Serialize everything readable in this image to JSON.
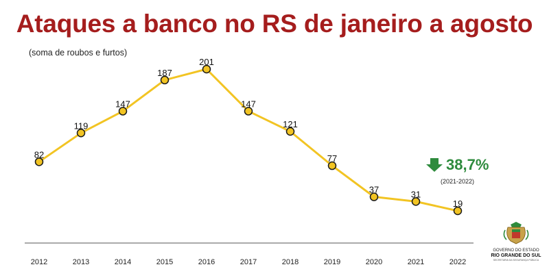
{
  "title": "Ataques a banco no RS de janeiro a agosto",
  "subtitle": "(soma de roubos e furtos)",
  "callout": {
    "value": "38,7%",
    "period": "(2021-2022)",
    "arrow_icon": "arrow-down-icon",
    "color": "#2e8b3d"
  },
  "logo": {
    "line1": "GOVERNO DO ESTADO",
    "line2": "RIO GRANDE DO SUL",
    "line3": "SECRETARIA DA SEGURANÇA PÚBLICA",
    "icon": "state-coat-of-arms-icon"
  },
  "colors": {
    "title": "#a51d1d",
    "line": "#f2c423",
    "marker_fill": "#f2c423",
    "marker_stroke": "#1a1a1a",
    "axis": "#555555"
  },
  "chart_data": {
    "type": "line",
    "title": "Ataques a banco no RS de janeiro a agosto",
    "subtitle": "(soma de roubos e furtos)",
    "xlabel": "",
    "ylabel": "",
    "categories": [
      "2012",
      "2013",
      "2014",
      "2015",
      "2016",
      "2017",
      "2018",
      "2019",
      "2020",
      "2021",
      "2022"
    ],
    "series": [
      {
        "values": [
          82,
          119,
          147,
          187,
          201,
          147,
          121,
          77,
          37,
          31,
          19
        ]
      }
    ],
    "ylim": [
      0,
      220
    ],
    "grid": false,
    "legend": "none"
  }
}
